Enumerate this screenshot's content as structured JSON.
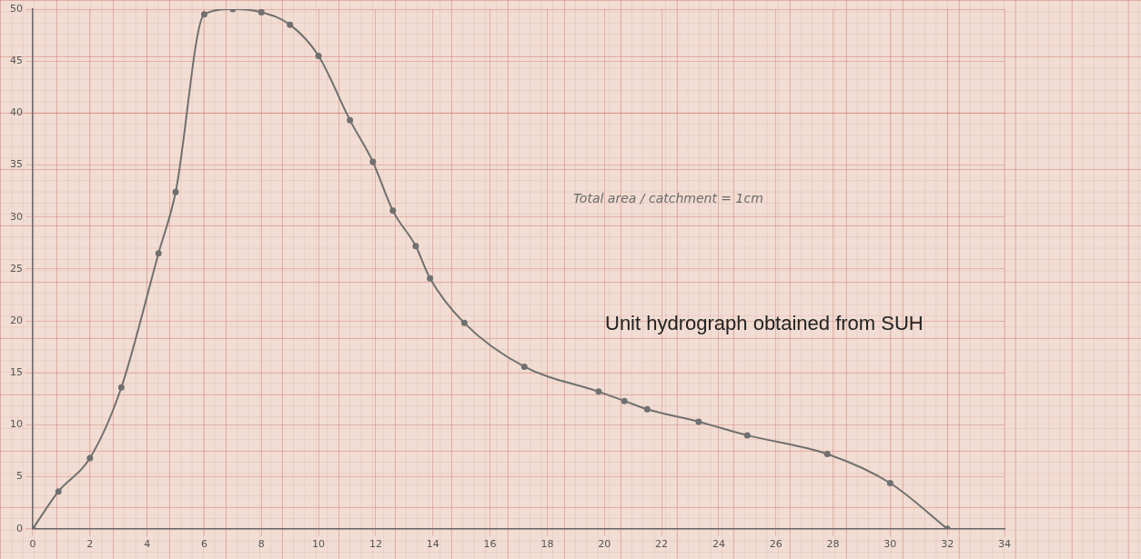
{
  "chart_data": {
    "type": "line",
    "x": [
      0,
      0.9,
      2,
      3.1,
      4.4,
      5,
      6,
      7,
      8,
      9,
      10,
      11.1,
      11.9,
      12.6,
      13.4,
      13.9,
      15.1,
      17.2,
      19.8,
      20.7,
      21.5,
      23.3,
      25,
      27.8,
      30,
      32
    ],
    "values": [
      0,
      3.6,
      6.8,
      13.6,
      26.5,
      32.4,
      49.5,
      50,
      49.7,
      48.5,
      45.5,
      39.3,
      35.3,
      30.6,
      27.2,
      24.1,
      19.8,
      15.6,
      13.2,
      12.3,
      11.5,
      10.3,
      9.0,
      7.2,
      4.4,
      0
    ],
    "color": "#707070",
    "marker": "circle",
    "line_style": "solid",
    "xlim": [
      0,
      34
    ],
    "xticks": [
      0,
      2,
      4,
      6,
      8,
      10,
      12,
      14,
      16,
      18,
      20,
      22,
      24,
      26,
      28,
      30,
      32,
      34
    ],
    "ylim": [
      0,
      50
    ],
    "yticks": [
      0,
      5,
      10,
      15,
      20,
      25,
      30,
      35,
      40,
      45,
      50
    ],
    "grid": true,
    "annotations": [
      "Total area / catchment = 1cm",
      "Unit hydrograph obtained from SUH"
    ]
  }
}
